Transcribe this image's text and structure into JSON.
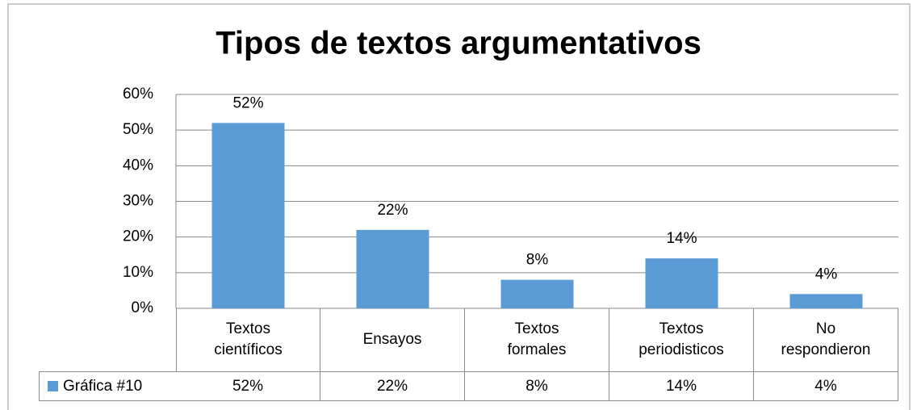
{
  "chart_data": {
    "type": "bar",
    "title": "Tipos de textos argumentativos",
    "categories": [
      "Textos científicos",
      "Ensayos",
      "Textos formales",
      "Textos periodisticos",
      "No respondieron"
    ],
    "series": [
      {
        "name": "Gráfica #10",
        "color": "#5b9bd5",
        "values": [
          52,
          22,
          8,
          14,
          4
        ],
        "value_labels": [
          "52%",
          "22%",
          "8%",
          "14%",
          "4%"
        ]
      }
    ],
    "ylim": [
      0,
      60
    ],
    "yticks": [
      {
        "value": 0,
        "label": "0%"
      },
      {
        "value": 10,
        "label": "10%"
      },
      {
        "value": 20,
        "label": "20%"
      },
      {
        "value": 30,
        "label": "30%"
      },
      {
        "value": 40,
        "label": "40%"
      },
      {
        "value": 50,
        "label": "50%"
      },
      {
        "value": 60,
        "label": "60%"
      }
    ],
    "grid": true,
    "data_table": true
  }
}
